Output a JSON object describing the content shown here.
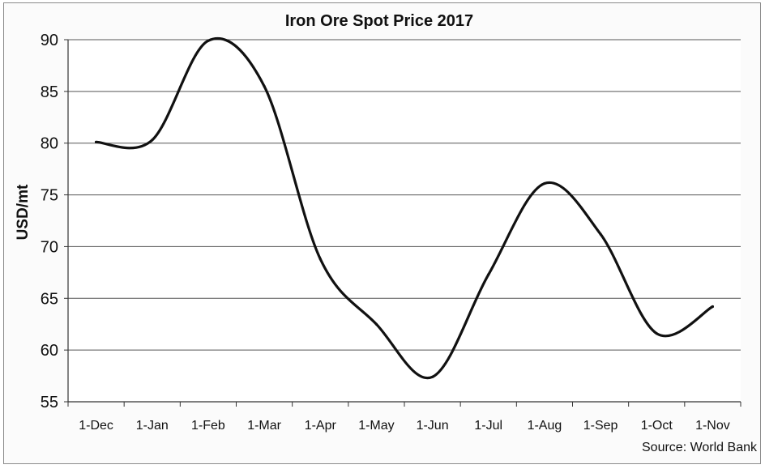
{
  "chart_data": {
    "type": "line",
    "title": "Iron Ore Spot Price 2017",
    "xlabel": "",
    "ylabel": "USD/mt",
    "source": "Source: World Bank",
    "categories": [
      "1-Dec",
      "1-Jan",
      "1-Feb",
      "1-Mar",
      "1-Apr",
      "1-May",
      "1-Jun",
      "1-Jul",
      "1-Aug",
      "1-Sep",
      "1-Oct",
      "1-Nov"
    ],
    "ylim": [
      55,
      90
    ],
    "yticks": [
      55,
      60,
      65,
      70,
      75,
      80,
      85,
      90
    ],
    "grid": true,
    "series": [
      {
        "values": [
          80.1,
          80.3,
          89.9,
          85.5,
          68.8,
          62.5,
          57.4,
          67.3,
          76.1,
          71.2,
          61.6,
          64.2
        ]
      }
    ]
  },
  "colors": {
    "line": "#111111",
    "grid": "#555555",
    "plot_background": "#ffffff"
  }
}
